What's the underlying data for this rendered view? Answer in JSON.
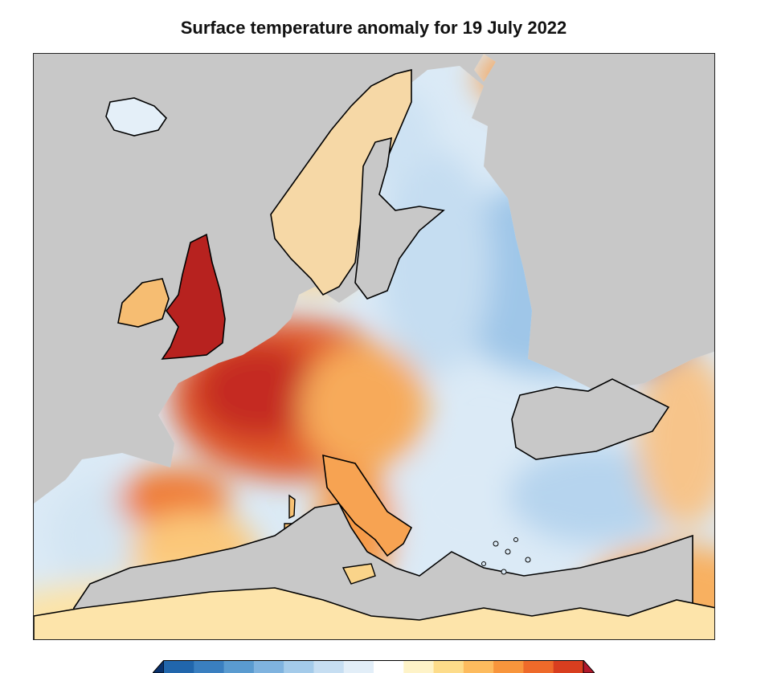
{
  "title": "Surface temperature anomaly for 19 July 2022",
  "map": {
    "sea_color": "#c8c8c8",
    "coastline_color": "#000000",
    "scale": "diverging blue-white-red"
  },
  "colorbar": {
    "colors": [
      "#08306b",
      "#2166ac",
      "#3a7fc0",
      "#5a9bd0",
      "#7fb3df",
      "#a4cbea",
      "#c6def2",
      "#e2eef8",
      "#ffffff",
      "#fef3c8",
      "#fddc8a",
      "#fdbb5e",
      "#f8953c",
      "#ee6a2a",
      "#d83e1f",
      "#b2182b"
    ]
  }
}
